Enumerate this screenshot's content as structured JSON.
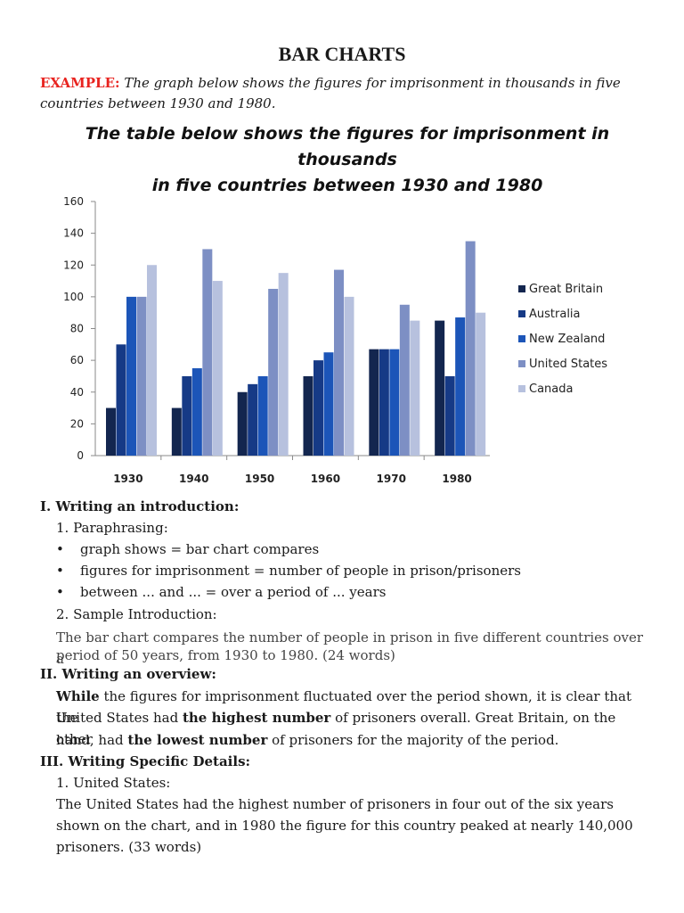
{
  "page_title": "BAR CHARTS",
  "example_label": "EXAMPLE:",
  "example_text": "The graph below shows the figures for imprisonment in thousands in five countries between 1930 and 1980.",
  "chart_data": {
    "type": "bar",
    "title_line1": "The table below shows the figures for imprisonment in thousands",
    "title_line2": "in five countries between 1930 and 1980",
    "categories": [
      "1930",
      "1940",
      "1950",
      "1960",
      "1970",
      "1980"
    ],
    "series": [
      {
        "name": "Great Britain",
        "color": "#13264f",
        "values": [
          30,
          30,
          40,
          50,
          67,
          85
        ]
      },
      {
        "name": "Australia",
        "color": "#163a86",
        "values": [
          70,
          50,
          45,
          60,
          67,
          50
        ]
      },
      {
        "name": "New Zealand",
        "color": "#1c55b8",
        "values": [
          100,
          55,
          50,
          65,
          67,
          87
        ]
      },
      {
        "name": "United States",
        "color": "#7d8fc4",
        "values": [
          100,
          130,
          105,
          117,
          95,
          135
        ]
      },
      {
        "name": "Canada",
        "color": "#b7c1de",
        "values": [
          120,
          110,
          115,
          100,
          85,
          90
        ]
      }
    ],
    "yticks": [
      "160",
      "140",
      "120",
      "100",
      "80",
      "60",
      "40",
      "20",
      "0"
    ],
    "ylim": [
      0,
      160
    ],
    "legend_position": "right",
    "grid": false
  },
  "intro": {
    "heading": "I. Writing an introduction:",
    "sub1": "1. Paraphrasing:",
    "bullets": [
      "graph shows = bar chart compares",
      "figures for imprisonment = number of people in prison/prisoners",
      "between ... and ... = over a period of ... years"
    ],
    "sub2": "2. Sample Introduction:",
    "sample_line1": "The bar chart compares the number of people in prison in five different countries over a",
    "sample_line2": "period of 50 years, from 1930 to 1980. (24 words)"
  },
  "overview": {
    "heading": "II. Writing an overview:",
    "w1": "While",
    "t1": " the figures for imprisonment fluctuated over the period shown, it is clear that the",
    "t2a": "United States had ",
    "w2": "the highest number",
    "t2b": " of prisoners overall. Great Britain, on the other",
    "t3a": "hand, had ",
    "w3": "the lowest number",
    "t3b": " of prisoners for the majority of the period."
  },
  "details": {
    "heading": "III. Writing Specific Details:",
    "sub1": "1. United States:",
    "line1": "The United States had the highest number of prisoners in four out of the six years",
    "line2": "shown on the chart, and in 1980 the figure for this country peaked at nearly 140,000",
    "line3": "prisoners. (33 words)"
  }
}
